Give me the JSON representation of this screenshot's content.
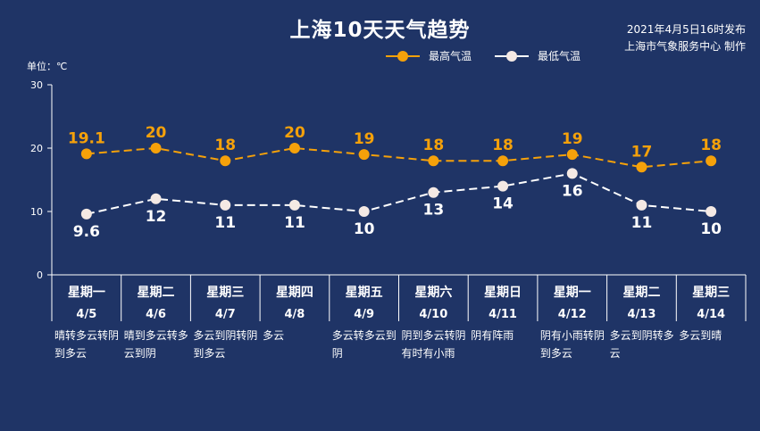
{
  "header": {
    "title": "上海10天天气趋势",
    "issued": "2021年4月5日16时发布",
    "producer": "上海市气象服务中心 制作"
  },
  "unit_label": "单位：℃",
  "colors": {
    "background": "#1f3466",
    "high": "#f5a10a",
    "low": "#ffffff",
    "low_marker": "#f4e9e4",
    "axis": "#ffffff"
  },
  "chart_data": {
    "type": "line",
    "ylim": [
      0,
      30
    ],
    "yticks": [
      0,
      10,
      20,
      30
    ],
    "legend_position": "top",
    "series": [
      {
        "name": "最高气温",
        "values": [
          19.1,
          20,
          18,
          20,
          19,
          18,
          18,
          19,
          17,
          18
        ],
        "labels": [
          "19.1",
          "20",
          "18",
          "20",
          "19",
          "18",
          "18",
          "19",
          "17",
          "18"
        ]
      },
      {
        "name": "最低气温",
        "values": [
          9.6,
          12,
          11,
          11,
          10,
          13,
          14,
          16,
          11,
          10
        ],
        "labels": [
          "9.6",
          "12",
          "11",
          "11",
          "10",
          "13",
          "14",
          "16",
          "11",
          "10"
        ]
      }
    ],
    "days": [
      {
        "weekday": "星期一",
        "date": "4/5",
        "weather": "晴转多云转阴到多云"
      },
      {
        "weekday": "星期二",
        "date": "4/6",
        "weather": "晴到多云转多云到阴"
      },
      {
        "weekday": "星期三",
        "date": "4/7",
        "weather": "多云到阴转阴到多云"
      },
      {
        "weekday": "星期四",
        "date": "4/8",
        "weather": "多云"
      },
      {
        "weekday": "星期五",
        "date": "4/9",
        "weather": "多云转多云到阴"
      },
      {
        "weekday": "星期六",
        "date": "4/10",
        "weather": "阴到多云转阴有时有小雨"
      },
      {
        "weekday": "星期日",
        "date": "4/11",
        "weather": "阴有阵雨"
      },
      {
        "weekday": "星期一",
        "date": "4/12",
        "weather": "阴有小雨转阴到多云"
      },
      {
        "weekday": "星期二",
        "date": "4/13",
        "weather": "多云到阴转多云"
      },
      {
        "weekday": "星期三",
        "date": "4/14",
        "weather": "多云到晴"
      }
    ]
  }
}
